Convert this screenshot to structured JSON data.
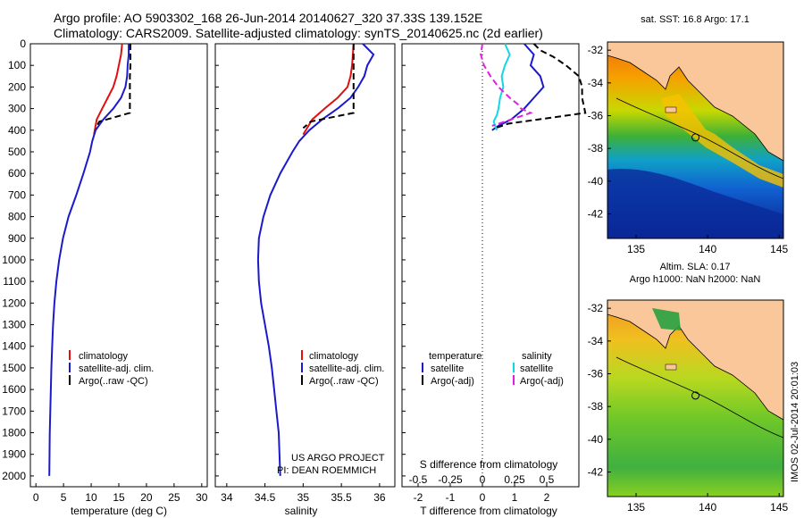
{
  "header": {
    "line1": "Argo profile: AO 5903302_168 26-Jun-2014 20140627_320 37.33S 139.152E",
    "line2": "Climatology: CARS2009. Satellite-adjusted climatology: synTS_20140625.nc (2d earlier)"
  },
  "colors": {
    "climatology": "#e01010",
    "satellite": "#1a1acc",
    "argo": "#000000",
    "satellite_s": "#10d8e0",
    "argo_s": "#e020e0",
    "land": "#f9c79a"
  },
  "depth_axis": {
    "min": 0,
    "max": 2050,
    "ticks": [
      0,
      100,
      200,
      300,
      400,
      500,
      600,
      700,
      800,
      900,
      1000,
      1100,
      1200,
      1300,
      1400,
      1500,
      1600,
      1700,
      1800,
      1900,
      2000
    ]
  },
  "chart_data": [
    {
      "type": "line",
      "id": "temperature",
      "xlabel": "temperature (deg C)",
      "xlim": [
        -1,
        31
      ],
      "xticks": [
        0,
        5,
        10,
        15,
        20,
        25,
        30
      ],
      "ylim": [
        0,
        2050
      ],
      "legend": [
        "climatology",
        "satellite-adj. clim.",
        "Argo(..raw -QC)"
      ],
      "series": [
        {
          "name": "climatology",
          "x": [
            15.6,
            15.4,
            15.0,
            14.6,
            14.0,
            13.0,
            12.0,
            11.0,
            10.5
          ],
          "y": [
            0,
            50,
            100,
            150,
            200,
            250,
            300,
            350,
            420
          ]
        },
        {
          "name": "satellite-adj. clim.",
          "x": [
            16.8,
            16.8,
            16.6,
            16.5,
            16.2,
            15.4,
            14.0,
            12.2,
            10.8,
            10.2,
            9.8,
            8.6,
            7.3,
            5.9,
            4.9,
            4.2,
            3.7,
            3.35,
            3.1,
            2.95,
            2.8,
            2.7,
            2.6,
            2.5,
            2.42
          ],
          "y": [
            0,
            50,
            100,
            150,
            200,
            250,
            300,
            350,
            400,
            450,
            500,
            600,
            700,
            800,
            900,
            1000,
            1100,
            1200,
            1300,
            1400,
            1500,
            1600,
            1700,
            1800,
            2000
          ]
        },
        {
          "name": "Argo(..raw -QC)",
          "x": [
            17.1,
            17.1,
            17.1,
            17.0,
            17.0,
            17.0,
            17.0,
            11.5,
            10.8
          ],
          "y": [
            0,
            50,
            100,
            150,
            200,
            250,
            320,
            360,
            390
          ]
        }
      ]
    },
    {
      "type": "line",
      "id": "salinity",
      "xlabel": "salinity",
      "xlim": [
        33.85,
        36.2
      ],
      "xticks": [
        34,
        34.5,
        35,
        35.5,
        36
      ],
      "ylim": [
        0,
        2050
      ],
      "legend": [
        "climatology",
        "satellite-adj. clim.",
        "Argo(..raw -QC)"
      ],
      "annotation": [
        "US ARGO PROJECT",
        "PI: DEAN ROEMMICH"
      ],
      "series": [
        {
          "name": "climatology",
          "x": [
            35.66,
            35.65,
            35.64,
            35.62,
            35.58,
            35.45,
            35.28,
            35.12,
            35.0
          ],
          "y": [
            0,
            50,
            100,
            150,
            200,
            250,
            300,
            350,
            420
          ]
        },
        {
          "name": "satellite-adj. clim.",
          "x": [
            35.78,
            35.92,
            35.84,
            35.8,
            35.72,
            35.62,
            35.45,
            35.25,
            35.08,
            34.95,
            34.86,
            34.7,
            34.57,
            34.48,
            34.42,
            34.41,
            34.42,
            34.45,
            34.5,
            34.55,
            34.59,
            34.62,
            34.65,
            34.68,
            34.7
          ],
          "y": [
            0,
            50,
            100,
            150,
            200,
            250,
            300,
            350,
            400,
            450,
            500,
            600,
            700,
            800,
            900,
            1000,
            1100,
            1200,
            1300,
            1400,
            1500,
            1600,
            1700,
            1800,
            2000
          ]
        },
        {
          "name": "Argo(..raw -QC)",
          "x": [
            35.66,
            35.66,
            35.66,
            35.66,
            35.66,
            35.66,
            35.66,
            35.1,
            35.0
          ],
          "y": [
            0,
            50,
            100,
            150,
            200,
            250,
            320,
            360,
            390
          ]
        }
      ]
    },
    {
      "type": "line",
      "id": "difference",
      "xlabel": "T difference from climatology",
      "xlabel_top": "S difference from climatology",
      "xlim": [
        -2.5,
        3.0
      ],
      "xticks": [
        -2,
        -1,
        0,
        1,
        2
      ],
      "s_xticks": [
        -0.5,
        -0.25,
        0,
        0.25,
        0.5
      ],
      "s_xtick_labels": [
        "-0.5",
        "-0.25",
        "0",
        "0.25",
        "0.5"
      ],
      "ylim": [
        0,
        2050
      ],
      "legend_temperature": {
        "title": "temperature",
        "items": [
          "satellite",
          "Argo(-adj)"
        ]
      },
      "legend_salinity": {
        "title": "salinity",
        "items": [
          "satellite",
          "Argo(-adj)"
        ]
      },
      "series": [
        {
          "name": "temperature satellite",
          "x": [
            1.3,
            1.6,
            1.5,
            1.8,
            1.9,
            1.6,
            1.3,
            0.9,
            0.5,
            0.3
          ],
          "y": [
            0,
            50,
            100,
            150,
            200,
            250,
            300,
            350,
            380,
            400
          ]
        },
        {
          "name": "temperature Argo(-adj)",
          "x": [
            1.6,
            1.8,
            2.2,
            2.6,
            3.0,
            3.1,
            3.1,
            3.2,
            0.8,
            0.4
          ],
          "y": [
            0,
            30,
            60,
            100,
            150,
            200,
            250,
            320,
            370,
            390
          ]
        },
        {
          "name": "salinity satellite",
          "x": [
            0.7,
            0.85,
            0.7,
            0.6,
            0.65,
            0.55,
            0.5,
            0.45,
            0.35,
            0.4,
            0.45
          ],
          "y": [
            0,
            50,
            100,
            150,
            200,
            250,
            300,
            330,
            360,
            380,
            400
          ]
        },
        {
          "name": "salinity Argo(-adj)",
          "x": [
            0.0,
            -0.05,
            0.05,
            0.25,
            0.5,
            0.85,
            1.1,
            1.2,
            1.5,
            0.9,
            0.3
          ],
          "y": [
            0,
            50,
            100,
            150,
            200,
            250,
            280,
            300,
            320,
            350,
            380
          ]
        }
      ]
    },
    {
      "type": "heatmap",
      "id": "map-sst",
      "title": "sat. SST: 16.8 Argo: 17.1",
      "xlim": [
        133,
        145.3
      ],
      "ylim": [
        -43.5,
        -31.5
      ],
      "xticks": [
        135,
        140,
        145
      ],
      "yticks": [
        -32,
        -34,
        -36,
        -38,
        -40,
        -42
      ],
      "marker": {
        "x": 139.152,
        "y": -37.33
      }
    },
    {
      "type": "heatmap",
      "id": "map-sla",
      "title": "Altim. SLA: 0.17",
      "title2": "Argo h1000: NaN h2000: NaN",
      "xlim": [
        133,
        145.3
      ],
      "ylim": [
        -43.5,
        -31.5
      ],
      "xticks": [
        135,
        140,
        145
      ],
      "yticks": [
        -32,
        -34,
        -36,
        -38,
        -40,
        -42
      ],
      "marker": {
        "x": 139.152,
        "y": -37.33
      }
    }
  ],
  "side_label": "IMOS 02-Jul-2014 20:01:03"
}
